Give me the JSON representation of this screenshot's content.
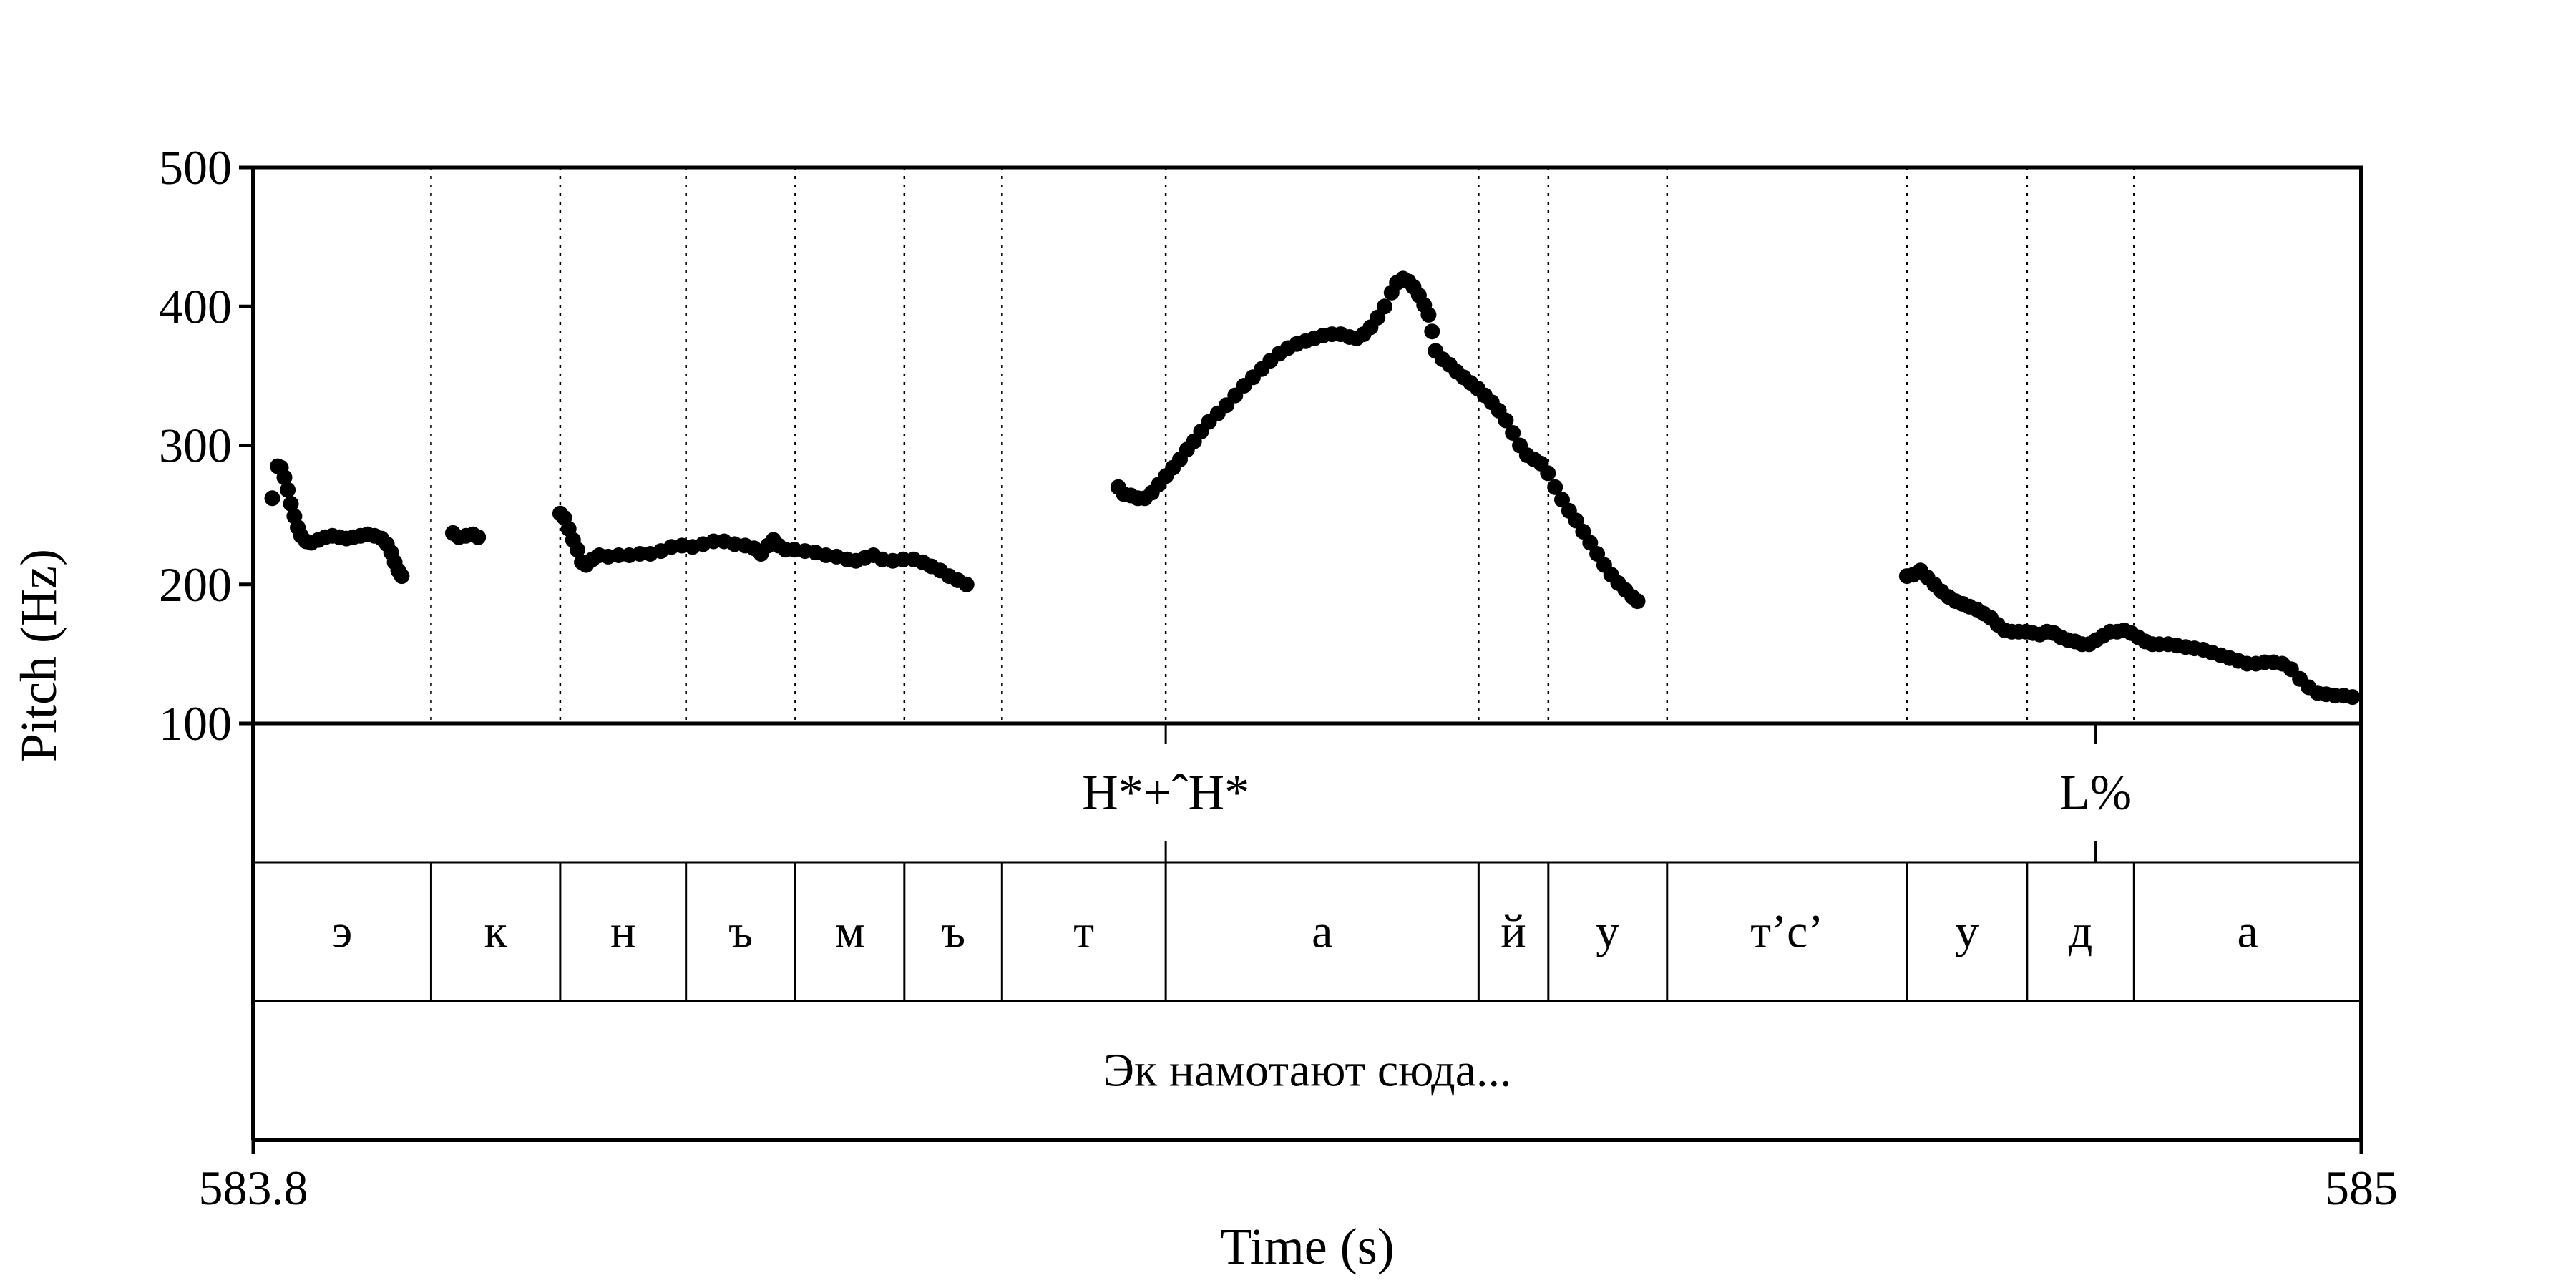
{
  "chart_data": {
    "type": "scatter",
    "xlabel": "Time (s)",
    "ylabel": "Pitch (Hz)",
    "xlim": [
      583.8,
      585
    ],
    "ylim": [
      100,
      500
    ],
    "x_tick_labels": [
      "583.8",
      "585"
    ],
    "y_ticks": [
      100,
      200,
      300,
      400,
      500
    ],
    "y_tick_labels": [
      "100",
      "200",
      "300",
      "400",
      "500"
    ],
    "tone_tier": [
      {
        "label": "H*+ˆH*",
        "time": 584.3194
      },
      {
        "label": "L%",
        "time": 584.8487
      }
    ],
    "segment_boundaries": [
      583.9012,
      583.9747,
      584.0463,
      584.1085,
      584.1706,
      584.2262,
      584.3194,
      584.4975,
      584.5372,
      584.6048,
      584.7413,
      584.8097,
      584.8706
    ],
    "segment_labels": [
      "э",
      "к",
      "н",
      "ъ",
      "м",
      "ъ",
      "т",
      "а",
      "й",
      "у",
      "т’с’",
      "у",
      "д",
      "а"
    ],
    "sentence": "Эк намотают сюда...",
    "pitch_contour": [
      [
        583.8108,
        262
      ],
      [
        583.8139,
        285
      ],
      [
        583.8157,
        284
      ],
      [
        583.8177,
        277
      ],
      [
        583.8196,
        268
      ],
      [
        583.8214,
        258
      ],
      [
        583.8234,
        249
      ],
      [
        583.8253,
        241
      ],
      [
        583.8272,
        235
      ],
      [
        583.83,
        231
      ],
      [
        583.833,
        230
      ],
      [
        583.837,
        232
      ],
      [
        583.841,
        234
      ],
      [
        583.845,
        235
      ],
      [
        583.849,
        234
      ],
      [
        583.853,
        233
      ],
      [
        583.857,
        234
      ],
      [
        583.861,
        235
      ],
      [
        583.865,
        236
      ],
      [
        583.869,
        235
      ],
      [
        583.873,
        233
      ],
      [
        583.876,
        229
      ],
      [
        583.8785,
        223
      ],
      [
        583.8805,
        216
      ],
      [
        583.8825,
        210
      ],
      [
        583.8845,
        206
      ],
      [
        583.9136,
        237
      ],
      [
        583.917,
        234
      ],
      [
        583.921,
        235
      ],
      [
        583.925,
        236
      ],
      [
        583.928,
        234
      ],
      [
        583.9747,
        251
      ],
      [
        583.977,
        248
      ],
      [
        583.9795,
        240
      ],
      [
        583.982,
        232
      ],
      [
        583.9845,
        225
      ],
      [
        583.987,
        216
      ],
      [
        583.9895,
        214
      ],
      [
        583.993,
        218
      ],
      [
        583.997,
        221
      ],
      [
        584.002,
        220
      ],
      [
        584.008,
        221
      ],
      [
        584.014,
        221
      ],
      [
        584.02,
        222
      ],
      [
        584.026,
        222
      ],
      [
        584.032,
        224
      ],
      [
        584.038,
        227
      ],
      [
        584.044,
        228
      ],
      [
        584.05,
        227
      ],
      [
        584.056,
        229
      ],
      [
        584.062,
        231
      ],
      [
        584.068,
        231
      ],
      [
        584.074,
        229
      ],
      [
        584.08,
        228
      ],
      [
        584.085,
        226
      ],
      [
        584.089,
        222
      ],
      [
        584.093,
        228
      ],
      [
        584.096,
        232
      ],
      [
        584.099,
        228
      ],
      [
        584.103,
        225
      ],
      [
        584.108,
        225
      ],
      [
        584.114,
        224
      ],
      [
        584.12,
        223
      ],
      [
        584.126,
        221
      ],
      [
        584.132,
        220
      ],
      [
        584.138,
        218
      ],
      [
        584.143,
        217
      ],
      [
        584.148,
        219
      ],
      [
        584.153,
        221
      ],
      [
        584.158,
        218
      ],
      [
        584.164,
        217
      ],
      [
        584.17,
        218
      ],
      [
        584.176,
        218
      ],
      [
        584.181,
        216
      ],
      [
        584.186,
        213
      ],
      [
        584.191,
        210
      ],
      [
        584.196,
        206
      ],
      [
        584.201,
        203
      ],
      [
        584.206,
        200
      ],
      [
        584.2924,
        270
      ],
      [
        584.2955,
        265
      ],
      [
        584.2995,
        264
      ],
      [
        584.3035,
        262
      ],
      [
        584.3075,
        262
      ],
      [
        584.3115,
        266
      ],
      [
        584.3155,
        272
      ],
      [
        584.3195,
        278
      ],
      [
        584.3235,
        284
      ],
      [
        584.3275,
        290
      ],
      [
        584.3315,
        297
      ],
      [
        584.3355,
        303
      ],
      [
        584.3395,
        310
      ],
      [
        584.344,
        317
      ],
      [
        584.349,
        323
      ],
      [
        584.354,
        329
      ],
      [
        584.359,
        336
      ],
      [
        584.364,
        343
      ],
      [
        584.369,
        349
      ],
      [
        584.374,
        355
      ],
      [
        584.379,
        361
      ],
      [
        584.384,
        366
      ],
      [
        584.389,
        370
      ],
      [
        584.394,
        373
      ],
      [
        584.399,
        375
      ],
      [
        584.404,
        377
      ],
      [
        584.409,
        379
      ],
      [
        584.414,
        380
      ],
      [
        584.419,
        380
      ],
      [
        584.424,
        378
      ],
      [
        584.428,
        377
      ],
      [
        584.432,
        380
      ],
      [
        584.436,
        385
      ],
      [
        584.44,
        392
      ],
      [
        584.444,
        400
      ],
      [
        584.448,
        410
      ],
      [
        584.451,
        417
      ],
      [
        584.4545,
        420
      ],
      [
        584.4575,
        418
      ],
      [
        584.4605,
        414
      ],
      [
        584.4635,
        408
      ],
      [
        584.4665,
        401
      ],
      [
        584.469,
        394
      ],
      [
        584.471,
        382
      ],
      [
        584.473,
        368
      ],
      [
        584.477,
        362
      ],
      [
        584.481,
        358
      ],
      [
        584.485,
        353
      ],
      [
        584.489,
        349
      ],
      [
        584.493,
        345
      ],
      [
        584.497,
        341
      ],
      [
        584.501,
        336
      ],
      [
        584.505,
        331
      ],
      [
        584.509,
        325
      ],
      [
        584.513,
        318
      ],
      [
        584.517,
        309
      ],
      [
        584.521,
        300
      ],
      [
        584.525,
        293
      ],
      [
        584.529,
        290
      ],
      [
        584.533,
        287
      ],
      [
        584.537,
        280
      ],
      [
        584.541,
        270
      ],
      [
        584.545,
        261
      ],
      [
        584.549,
        253
      ],
      [
        584.553,
        246
      ],
      [
        584.557,
        238
      ],
      [
        584.561,
        230
      ],
      [
        584.565,
        222
      ],
      [
        584.569,
        214
      ],
      [
        584.573,
        207
      ],
      [
        584.577,
        201
      ],
      [
        584.581,
        196
      ],
      [
        584.585,
        191
      ],
      [
        584.588,
        188
      ],
      [
        584.7413,
        206
      ],
      [
        584.745,
        207
      ],
      [
        584.749,
        210
      ],
      [
        584.753,
        205
      ],
      [
        584.757,
        200
      ],
      [
        584.761,
        195
      ],
      [
        584.765,
        191
      ],
      [
        584.769,
        188
      ],
      [
        584.773,
        186
      ],
      [
        584.777,
        184
      ],
      [
        584.781,
        182
      ],
      [
        584.785,
        179
      ],
      [
        584.789,
        176
      ],
      [
        584.793,
        171
      ],
      [
        584.797,
        167
      ],
      [
        584.801,
        166
      ],
      [
        584.805,
        166
      ],
      [
        584.809,
        166
      ],
      [
        584.813,
        165
      ],
      [
        584.817,
        164
      ],
      [
        584.821,
        166
      ],
      [
        584.825,
        165
      ],
      [
        584.829,
        162
      ],
      [
        584.833,
        160
      ],
      [
        584.837,
        159
      ],
      [
        584.841,
        157
      ],
      [
        584.845,
        157
      ],
      [
        584.849,
        160
      ],
      [
        584.853,
        163
      ],
      [
        584.857,
        166
      ],
      [
        584.861,
        166
      ],
      [
        584.865,
        167
      ],
      [
        584.869,
        165
      ],
      [
        584.873,
        162
      ],
      [
        584.877,
        159
      ],
      [
        584.881,
        157
      ],
      [
        584.885,
        157
      ],
      [
        584.89,
        157
      ],
      [
        584.895,
        156
      ],
      [
        584.9,
        155
      ],
      [
        584.905,
        154
      ],
      [
        584.91,
        153
      ],
      [
        584.915,
        151
      ],
      [
        584.92,
        149
      ],
      [
        584.925,
        147
      ],
      [
        584.93,
        145
      ],
      [
        584.935,
        143
      ],
      [
        584.94,
        143
      ],
      [
        584.945,
        144
      ],
      [
        584.95,
        144
      ],
      [
        584.955,
        143
      ],
      [
        584.96,
        139
      ],
      [
        584.965,
        132
      ],
      [
        584.97,
        126
      ],
      [
        584.975,
        122
      ],
      [
        584.98,
        121
      ],
      [
        584.985,
        120
      ],
      [
        584.99,
        120
      ],
      [
        584.995,
        119
      ]
    ]
  }
}
